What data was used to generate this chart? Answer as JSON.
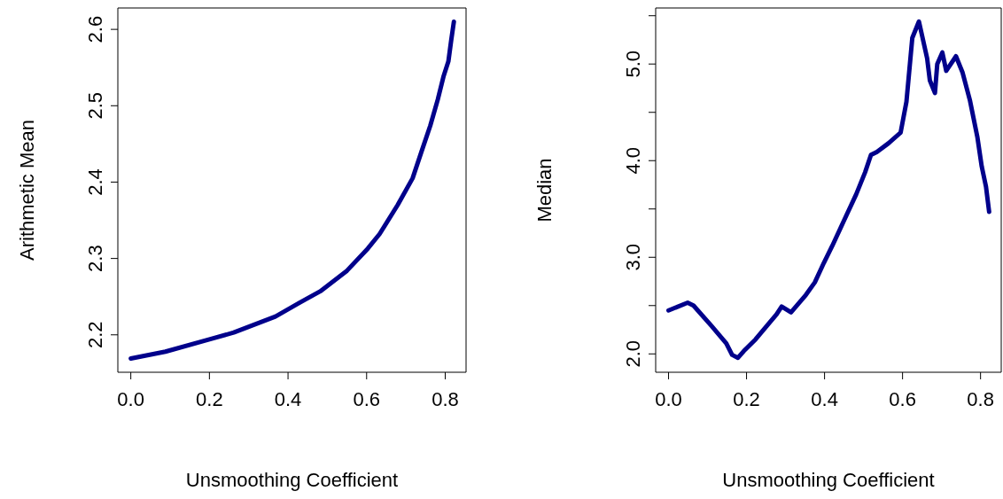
{
  "chart_data": [
    {
      "type": "line",
      "xlabel": "Unsmoothing Coefficient",
      "ylabel": "Arithmetic Mean",
      "xlim": [
        -0.033,
        0.853
      ],
      "ylim": [
        2.151,
        2.628
      ],
      "xticks": [
        {
          "value": 0,
          "label": "0.0"
        },
        0.2,
        0.4,
        0.6,
        0.8
      ],
      "yticks": [
        2.2,
        2.3,
        2.4,
        2.5,
        2.6
      ],
      "x": [
        0,
        0.088,
        0.2,
        0.262,
        0.368,
        0.429,
        0.482,
        0.55,
        0.603,
        0.633,
        0.679,
        0.717,
        0.739,
        0.762,
        0.781,
        0.796,
        0.808,
        0.815,
        0.822
      ],
      "series": [
        {
          "color": "#00008b",
          "values": [
            2.169,
            2.178,
            2.194,
            2.203,
            2.224,
            2.242,
            2.257,
            2.284,
            2.313,
            2.332,
            2.37,
            2.405,
            2.439,
            2.474,
            2.508,
            2.539,
            2.558,
            2.585,
            2.61
          ]
        }
      ]
    },
    {
      "type": "line",
      "xlabel": "Unsmoothing Coefficient",
      "ylabel": "Median",
      "xlim": [
        -0.033,
        0.853
      ],
      "ylim": [
        1.81,
        5.58
      ],
      "xticks": [
        {
          "value": 0,
          "label": "0.0"
        },
        0.2,
        0.4,
        0.6,
        0.8
      ],
      "yticks": [
        {
          "value": 2,
          "label": "2.0"
        },
        {
          "value": 2.5,
          "label": null
        },
        {
          "value": 3,
          "label": "3.0"
        },
        {
          "value": 3.5,
          "label": null
        },
        {
          "value": 4,
          "label": "4.0"
        },
        {
          "value": 4.5,
          "label": null
        },
        {
          "value": 5,
          "label": "5.0"
        },
        {
          "value": 5.5,
          "label": null
        }
      ],
      "x": [
        0,
        0.049,
        0.064,
        0.11,
        0.148,
        0.163,
        0.178,
        0.193,
        0.223,
        0.254,
        0.277,
        0.29,
        0.314,
        0.352,
        0.375,
        0.398,
        0.42,
        0.451,
        0.481,
        0.504,
        0.519,
        0.534,
        0.564,
        0.595,
        0.61,
        0.625,
        0.642,
        0.663,
        0.67,
        0.683,
        0.689,
        0.702,
        0.712,
        0.737,
        0.754,
        0.773,
        0.792,
        0.803,
        0.814,
        0.822
      ],
      "series": [
        {
          "color": "#00008b",
          "values": [
            2.45,
            2.53,
            2.5,
            2.29,
            2.11,
            1.99,
            1.96,
            2.03,
            2.15,
            2.3,
            2.41,
            2.49,
            2.43,
            2.61,
            2.74,
            2.94,
            3.12,
            3.39,
            3.65,
            3.88,
            4.06,
            4.09,
            4.18,
            4.29,
            4.61,
            5.27,
            5.44,
            5.06,
            4.83,
            4.7,
            5.0,
            5.12,
            4.93,
            5.08,
            4.91,
            4.62,
            4.24,
            3.94,
            3.73,
            3.47
          ]
        }
      ]
    }
  ]
}
